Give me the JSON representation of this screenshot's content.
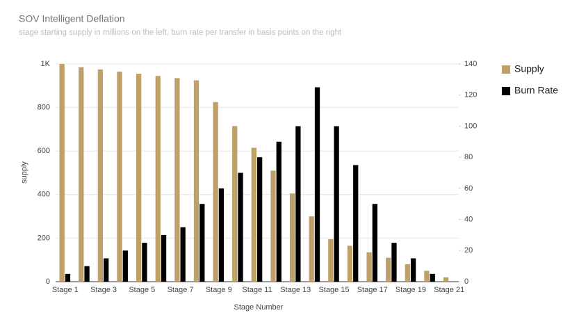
{
  "chart_data": {
    "type": "bar",
    "title": "SOV Intelligent Deflation",
    "subtitle": "stage starting supply in millions on the left, burn rate per transfer in basis points on the right",
    "x_label": "Stage Number",
    "y_label": "supply",
    "categories": [
      "Stage 1",
      null,
      "Stage 3",
      null,
      "Stage 5",
      null,
      "Stage 7",
      null,
      "Stage 9",
      null,
      "Stage 11",
      null,
      "Stage 13",
      null,
      "Stage 15",
      null,
      "Stage 17",
      null,
      "Stage 19",
      null,
      "Stage 21"
    ],
    "series": [
      {
        "name": "Supply",
        "color": "#bfa068",
        "values": [
          1000,
          985,
          975,
          965,
          955,
          945,
          935,
          925,
          825,
          715,
          615,
          510,
          405,
          300,
          195,
          165,
          135,
          110,
          80,
          50,
          20
        ]
      },
      {
        "name": "Burn Rate",
        "color": "#000000",
        "axis": "y2",
        "values": [
          5,
          10,
          15,
          20,
          25,
          30,
          35,
          50,
          60,
          70,
          80,
          90,
          100,
          125,
          100,
          75,
          50,
          25,
          15,
          5,
          0
        ]
      }
    ],
    "ylim": [
      0,
      1000
    ],
    "yticks": [
      0,
      200,
      400,
      600,
      800,
      {
        "value": 1000,
        "label": "1K"
      }
    ],
    "y2lim": [
      0,
      140
    ],
    "y2ticks": [
      0,
      20,
      40,
      60,
      80,
      100,
      120,
      140
    ],
    "grid": true,
    "legend": "right"
  }
}
